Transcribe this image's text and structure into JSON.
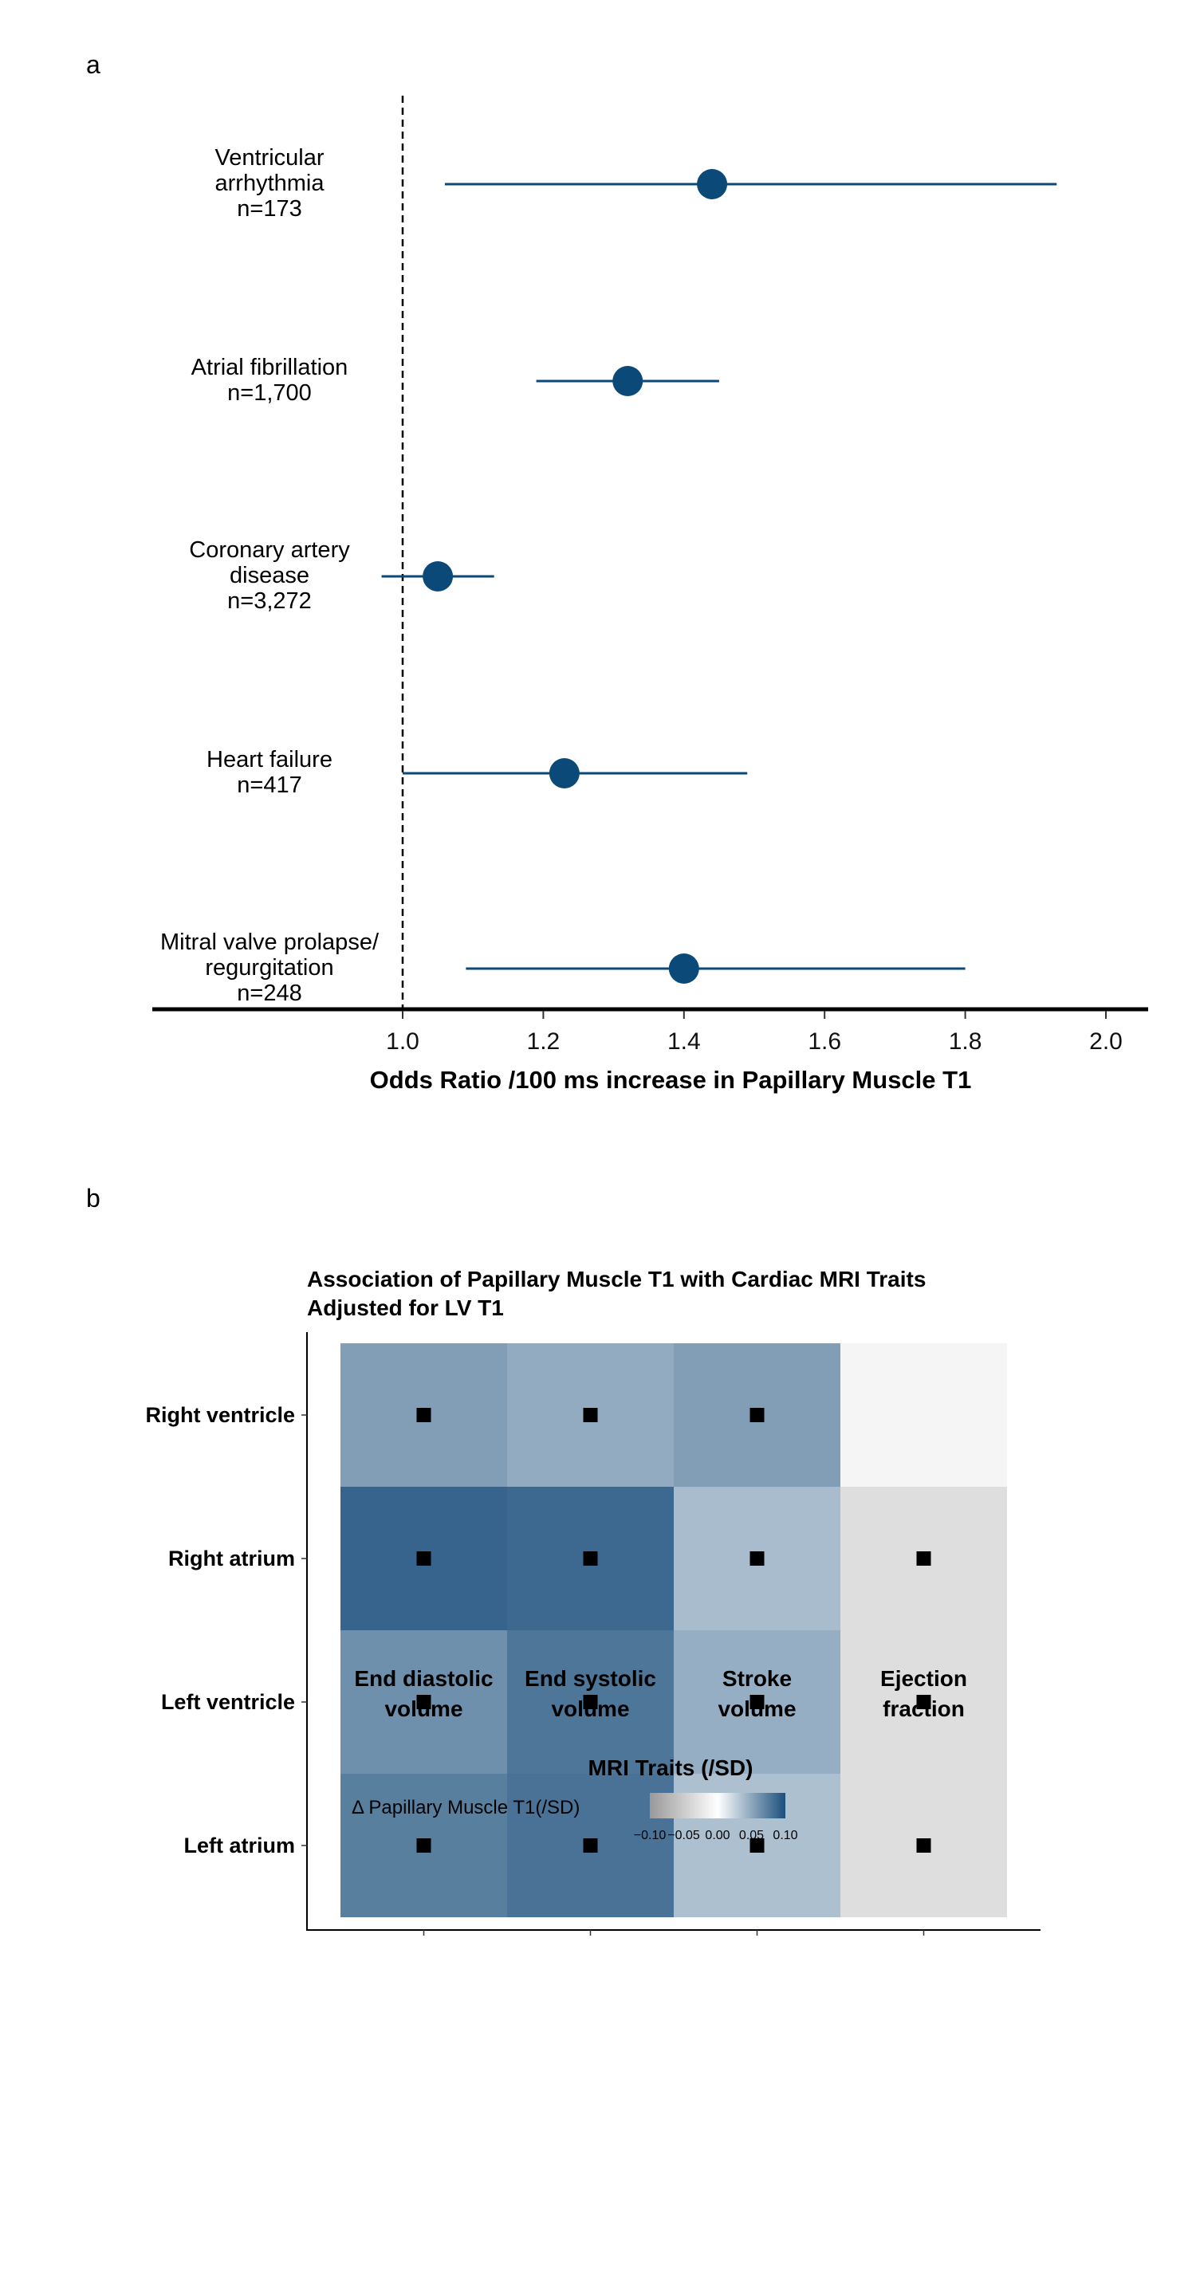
{
  "chart_data": [
    {
      "type": "forest",
      "panel_label": "a",
      "xlabel": "Odds Ratio /100 ms increase in Papillary Muscle T1",
      "xlim": [
        0.65,
        2.06
      ],
      "xticks": [
        "1.0",
        "1.2",
        "1.4",
        "1.6",
        "1.8",
        "2.0"
      ],
      "reference_line": 1.0,
      "point_color": "#0b4a78",
      "rows": [
        {
          "label": [
            "Ventricular",
            "arrhythmia",
            "n=173"
          ],
          "or": 1.44,
          "lo": 1.06,
          "hi": 1.93
        },
        {
          "label": [
            "Atrial fibrillation",
            "n=1,700"
          ],
          "or": 1.32,
          "lo": 1.19,
          "hi": 1.45
        },
        {
          "label": [
            "Coronary artery",
            "disease",
            "n=3,272"
          ],
          "or": 1.05,
          "lo": 0.97,
          "hi": 1.13
        },
        {
          "label": [
            "Heart failure",
            "n=417"
          ],
          "or": 1.23,
          "lo": 1.0,
          "hi": 1.49
        },
        {
          "label": [
            "Mitral valve prolapse/",
            "regurgitation",
            "n=248"
          ],
          "or": 1.4,
          "lo": 1.09,
          "hi": 1.8
        }
      ]
    },
    {
      "type": "heatmap",
      "panel_label": "b",
      "title": [
        "Association of Papillary Muscle T1 with Cardiac MRI Traits",
        "Adjusted for LV T1"
      ],
      "xlabel": "MRI Traits (/SD)",
      "columns": [
        [
          "End diastolic",
          "volume"
        ],
        [
          "End systolic",
          "volume"
        ],
        [
          "Stroke",
          "volume"
        ],
        [
          "Ejection",
          "fraction"
        ]
      ],
      "rows": [
        "Right ventricle",
        "Right atrium",
        "Left ventricle",
        "Left atrium"
      ],
      "values": [
        [
          0.055,
          0.048,
          0.055,
          -0.01
        ],
        [
          0.088,
          0.085,
          0.038,
          -0.032
        ],
        [
          0.063,
          0.078,
          0.046,
          -0.032
        ],
        [
          0.073,
          0.08,
          0.036,
          -0.032
        ]
      ],
      "significant": [
        [
          true,
          true,
          true,
          false
        ],
        [
          true,
          true,
          true,
          true
        ],
        [
          true,
          true,
          true,
          true
        ],
        [
          true,
          true,
          true,
          true
        ]
      ],
      "legend": {
        "title": "Δ Papillary Muscle T1(/SD)",
        "range": [
          -0.1,
          0.1
        ],
        "ticks": [
          "−0.10",
          "−0.05",
          "0.00",
          "0.05",
          "0.10"
        ],
        "low_color": "#999999",
        "mid_color": "#ffffff",
        "high_color": "#1b4f7c",
        "position": "bottom"
      }
    }
  ]
}
